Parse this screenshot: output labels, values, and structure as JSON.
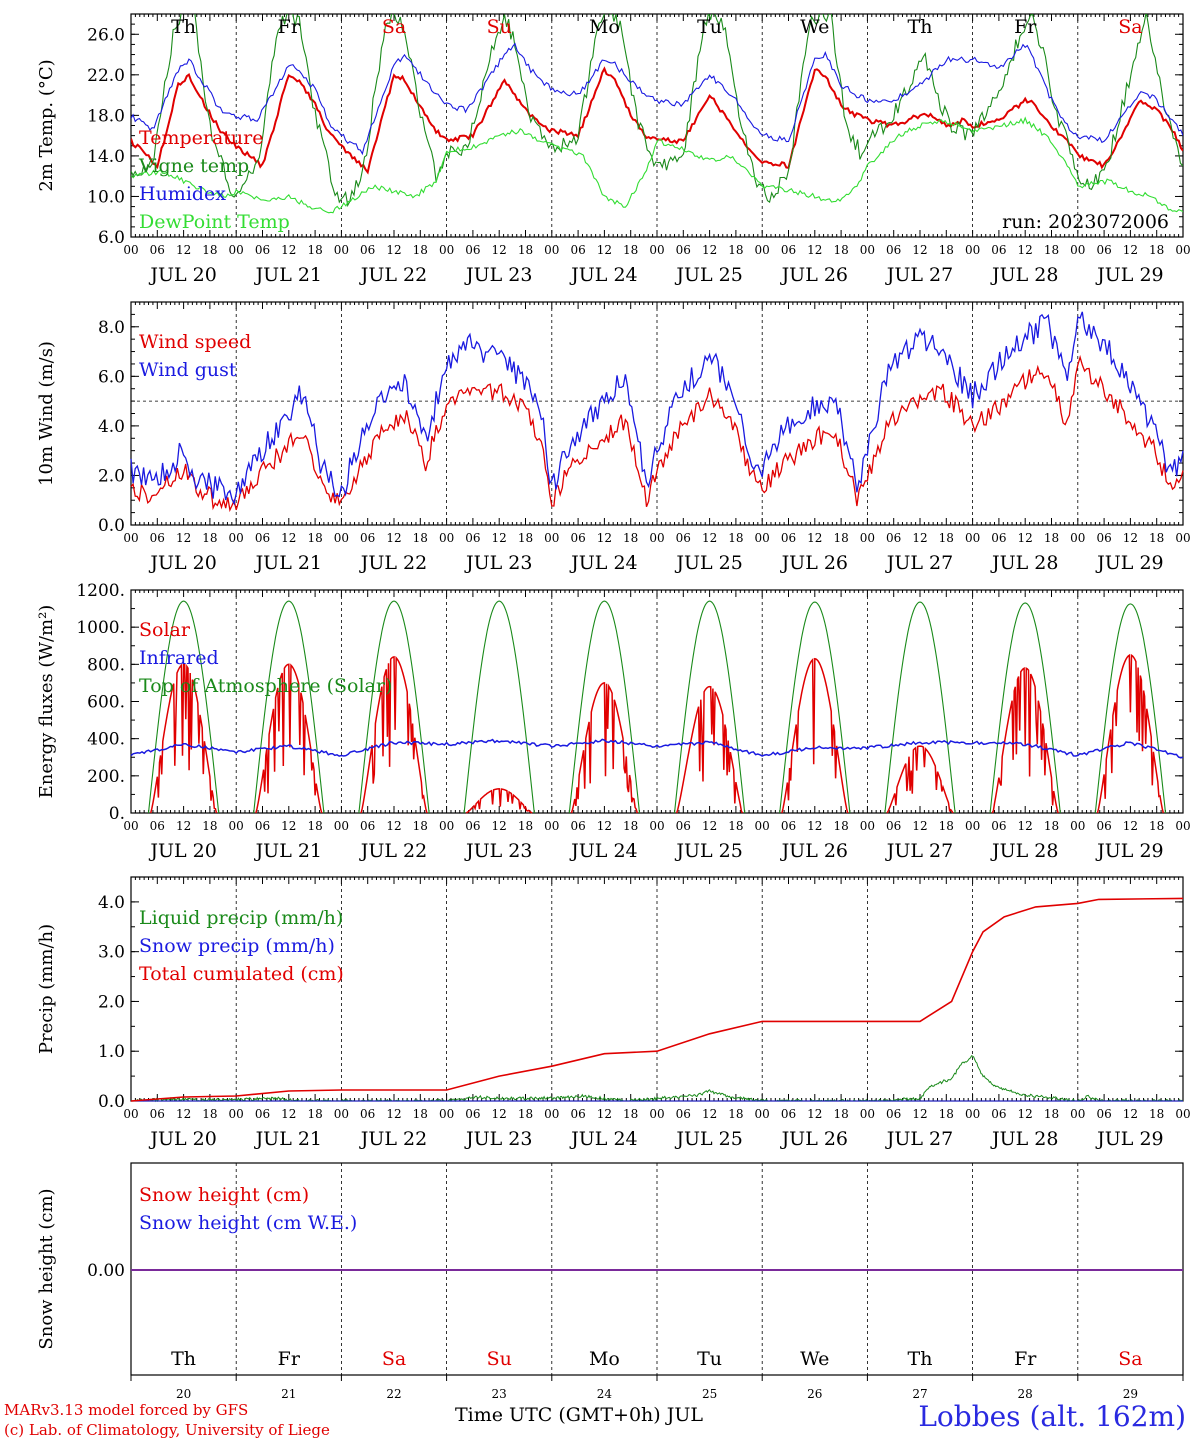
{
  "colors": {
    "red": "#e00000",
    "dark_green": "#1a8a1a",
    "blue": "#1a1ae0",
    "light_green": "#33dd33",
    "purple": "#7a2a9a"
  },
  "time_axis": {
    "hour_ticks": [
      "00",
      "06",
      "12",
      "18"
    ],
    "dates": [
      "JUL 20",
      "JUL 21",
      "JUL 22",
      "JUL 23",
      "JUL 24",
      "JUL 25",
      "JUL 26",
      "JUL 27",
      "JUL 28",
      "JUL 29"
    ],
    "weekdays": [
      {
        "label": "Th",
        "weekend": false
      },
      {
        "label": "Fr",
        "weekend": false
      },
      {
        "label": "Sa",
        "weekend": true
      },
      {
        "label": "Su",
        "weekend": true
      },
      {
        "label": "Mo",
        "weekend": false
      },
      {
        "label": "Tu",
        "weekend": false
      },
      {
        "label": "We",
        "weekend": false
      },
      {
        "label": "Th",
        "weekend": false
      },
      {
        "label": "Fr",
        "weekend": false
      },
      {
        "label": "Sa",
        "weekend": true
      }
    ],
    "day_numbers": [
      "20",
      "21",
      "22",
      "23",
      "24",
      "25",
      "26",
      "27",
      "28",
      "29"
    ],
    "xlabel": "Time UTC (GMT+0h) JUL",
    "x_range_days": [
      0,
      10
    ]
  },
  "chart_data": [
    {
      "type": "line",
      "ylabel": "2m Temp. (°C)",
      "ylim": [
        6,
        28
      ],
      "yticks": [
        "6.0",
        "10.0",
        "14.0",
        "18.0",
        "22.0",
        "26.0"
      ],
      "annotation": "run: 2023072006",
      "series": [
        {
          "name": "Temperature",
          "color": "#e00000",
          "x": [
            0,
            0.25,
            0.45,
            0.55,
            0.7,
            0.85,
            1.0,
            1.25,
            1.5,
            1.6,
            1.75,
            1.9,
            2.0,
            2.25,
            2.5,
            2.6,
            2.75,
            2.9,
            3.0,
            3.25,
            3.55,
            3.65,
            3.75,
            3.9,
            4.0,
            4.25,
            4.5,
            4.6,
            4.75,
            4.9,
            5.0,
            5.25,
            5.5,
            5.6,
            5.75,
            5.9,
            6.0,
            6.25,
            6.5,
            6.6,
            6.75,
            6.9,
            7.0,
            7.25,
            7.5,
            7.6,
            7.75,
            7.9,
            8.0,
            8.25,
            8.5,
            8.6,
            8.75,
            8.9,
            9.0,
            9.25,
            9.6,
            9.75,
            9.9,
            10.0
          ],
          "values": [
            15.5,
            13,
            21,
            22,
            19,
            16.5,
            15,
            13,
            22,
            21.5,
            19,
            16,
            15,
            12.5,
            22,
            21.5,
            19,
            16.5,
            15.5,
            16,
            21.5,
            20,
            18.5,
            17,
            16.5,
            16,
            22.5,
            21.5,
            18,
            16,
            15.5,
            15.5,
            20,
            18.5,
            16.5,
            14.5,
            13.5,
            13,
            22.5,
            22,
            19,
            18,
            17.5,
            17,
            18,
            18,
            17,
            17.5,
            17,
            17.5,
            19.5,
            19,
            17,
            15.5,
            14,
            13,
            19.5,
            18.5,
            16.5,
            14.5
          ]
        },
        {
          "name": "Vigne temp",
          "color": "#1a8a1a",
          "x": [
            0,
            0.2,
            0.4,
            0.5,
            0.6,
            0.75,
            0.9,
            1.0,
            1.2,
            1.4,
            1.5,
            1.6,
            1.75,
            1.9,
            2.0,
            2.2,
            2.4,
            2.5,
            2.6,
            2.75,
            2.9,
            3.0,
            3.2,
            3.45,
            3.55,
            3.65,
            3.8,
            3.95,
            4.05,
            4.25,
            4.45,
            4.55,
            4.65,
            4.8,
            4.95,
            5.05,
            5.25,
            5.45,
            5.55,
            5.65,
            5.8,
            5.95,
            6.05,
            6.25,
            6.45,
            6.55,
            6.65,
            6.8,
            6.95,
            7.05,
            7.25,
            7.45,
            7.55,
            7.65,
            7.8,
            7.95,
            8.05,
            8.25,
            8.45,
            8.55,
            8.65,
            8.8,
            8.95,
            9.05,
            9.25,
            9.55,
            9.65,
            9.8,
            9.95,
            10.0
          ],
          "values": [
            12,
            13,
            26,
            28,
            28,
            17,
            12,
            10,
            13,
            27,
            28,
            27,
            18,
            12,
            9,
            12,
            26,
            28,
            27,
            18,
            12,
            14,
            15,
            25,
            28,
            25,
            18,
            15,
            15,
            16,
            27,
            28,
            27,
            18,
            14,
            13,
            14,
            27,
            28,
            27,
            17,
            11,
            10,
            12,
            27,
            28,
            28,
            17,
            14,
            16,
            18,
            22,
            24,
            20,
            17,
            16,
            17,
            20,
            26,
            28,
            25,
            18,
            14,
            11,
            12,
            24,
            28,
            20,
            15,
            13
          ]
        },
        {
          "name": "Humidex",
          "color": "#1a1ae0",
          "x": [
            0,
            0.2,
            0.45,
            0.55,
            0.7,
            0.85,
            1.0,
            1.2,
            1.5,
            1.6,
            1.75,
            1.9,
            2.0,
            2.2,
            2.5,
            2.6,
            2.75,
            2.9,
            3.0,
            3.2,
            3.55,
            3.65,
            3.8,
            3.95,
            4.05,
            4.25,
            4.5,
            4.6,
            4.75,
            4.9,
            5.0,
            5.25,
            5.5,
            5.6,
            5.75,
            5.9,
            6.0,
            6.25,
            6.5,
            6.6,
            6.75,
            6.9,
            7.0,
            7.25,
            7.5,
            7.75,
            8.0,
            8.25,
            8.5,
            8.6,
            8.75,
            8.9,
            9.0,
            9.25,
            9.6,
            9.75,
            9.9,
            10.0
          ],
          "values": [
            18,
            16.5,
            22.5,
            23.5,
            21,
            18.5,
            18,
            17.5,
            23,
            22.5,
            20.5,
            17,
            16,
            14.5,
            23,
            24,
            22,
            20,
            19,
            18.5,
            24,
            25,
            22.5,
            21,
            20.5,
            20,
            23.5,
            23,
            21.5,
            20,
            19.5,
            19,
            22,
            21,
            19.5,
            17,
            16,
            15.5,
            23.5,
            24,
            21,
            20,
            19.5,
            19.5,
            21,
            23.5,
            23.5,
            22.5,
            25,
            23,
            19.5,
            17,
            16,
            15.5,
            20.5,
            19.5,
            17.5,
            16
          ]
        },
        {
          "name": "DewPoint Temp",
          "color": "#33dd33",
          "x": [
            0,
            0.3,
            0.5,
            0.7,
            0.9,
            1.0,
            1.3,
            1.5,
            1.7,
            1.9,
            2.0,
            2.3,
            2.5,
            2.7,
            2.9,
            3.0,
            3.3,
            3.5,
            3.7,
            3.9,
            4.0,
            4.3,
            4.5,
            4.7,
            4.9,
            5.0,
            5.3,
            5.5,
            5.7,
            5.9,
            6.0,
            6.3,
            6.5,
            6.7,
            6.9,
            7.0,
            7.3,
            7.5,
            7.7,
            7.9,
            8.0,
            8.3,
            8.5,
            8.7,
            8.9,
            9.0,
            9.3,
            9.5,
            9.7,
            9.9,
            10.0
          ],
          "values": [
            12,
            12.5,
            11.5,
            10.5,
            10,
            10.5,
            9.5,
            10,
            9,
            8.5,
            9,
            11,
            10.5,
            10,
            11.5,
            14.5,
            15,
            16,
            16.5,
            15.5,
            15,
            14,
            10,
            9,
            12.5,
            15.5,
            14.5,
            13.5,
            14,
            12,
            11,
            10.5,
            10,
            9.5,
            11,
            13,
            16,
            17,
            17.5,
            17,
            16.5,
            17,
            17.5,
            16,
            13,
            11,
            11.5,
            10.5,
            10,
            8.5,
            8.5
          ]
        }
      ]
    },
    {
      "type": "line",
      "ylabel": "10m Wind (m/s)",
      "ylim": [
        0,
        9
      ],
      "yticks": [
        "0.0",
        "2.0",
        "4.0",
        "6.0",
        "8.0"
      ],
      "reference_line": 5,
      "series": [
        {
          "name": "Wind speed",
          "color": "#e00000",
          "x": [
            0,
            0.2,
            0.4,
            0.5,
            0.6,
            0.8,
            1.0,
            1.2,
            1.4,
            1.6,
            1.7,
            1.8,
            2.0,
            2.2,
            2.4,
            2.6,
            2.8,
            3.0,
            3.2,
            3.5,
            3.7,
            3.9,
            4.0,
            4.2,
            4.5,
            4.7,
            4.9,
            5.0,
            5.2,
            5.5,
            5.7,
            5.9,
            6.0,
            6.2,
            6.5,
            6.7,
            6.9,
            7.0,
            7.2,
            7.5,
            7.7,
            7.9,
            8.0,
            8.3,
            8.5,
            8.7,
            8.9,
            9.0,
            9.3,
            9.5,
            9.7,
            9.9,
            10.0
          ],
          "values": [
            1.5,
            1.2,
            1.8,
            2.3,
            1.6,
            1.0,
            0.8,
            2.0,
            2.8,
            3.6,
            3.2,
            1.8,
            0.8,
            2.5,
            3.8,
            4.5,
            2.5,
            4.8,
            5.2,
            5.5,
            4.8,
            3.5,
            1.0,
            2.5,
            3.5,
            4.2,
            1.0,
            2.2,
            3.8,
            5.3,
            4.2,
            2.0,
            1.5,
            2.5,
            3.5,
            3.8,
            1.0,
            2.0,
            4.2,
            5.2,
            5.5,
            4.5,
            4.0,
            5.0,
            5.8,
            6.2,
            4.0,
            6.5,
            5.2,
            4.2,
            3.2,
            1.5,
            2.2
          ]
        },
        {
          "name": "Wind gust",
          "color": "#1a1ae0",
          "x": [
            0,
            0.2,
            0.4,
            0.5,
            0.6,
            0.8,
            1.0,
            1.2,
            1.4,
            1.6,
            1.7,
            1.8,
            2.0,
            2.2,
            2.4,
            2.6,
            2.8,
            3.0,
            3.2,
            3.5,
            3.7,
            3.9,
            4.0,
            4.2,
            4.5,
            4.7,
            4.9,
            5.0,
            5.2,
            5.5,
            5.7,
            5.9,
            6.0,
            6.2,
            6.5,
            6.7,
            6.9,
            7.0,
            7.2,
            7.5,
            7.7,
            7.9,
            8.0,
            8.3,
            8.5,
            8.7,
            8.9,
            9.0,
            9.3,
            9.5,
            9.7,
            9.9,
            10.0
          ],
          "values": [
            2.2,
            1.8,
            2.5,
            3.2,
            2.0,
            1.5,
            1.2,
            2.8,
            3.8,
            5.2,
            4.5,
            2.5,
            1.2,
            3.8,
            5.2,
            5.8,
            3.5,
            6.5,
            7.3,
            6.8,
            6.0,
            4.5,
            1.5,
            3.5,
            5.0,
            6.2,
            1.5,
            3.0,
            5.2,
            6.8,
            5.5,
            2.5,
            2.2,
            3.8,
            4.8,
            5.2,
            1.5,
            3.0,
            6.2,
            7.5,
            7.0,
            5.8,
            5.2,
            6.8,
            7.5,
            8.2,
            5.8,
            8.5,
            7.0,
            5.5,
            4.0,
            2.0,
            3.0
          ]
        }
      ]
    },
    {
      "type": "line",
      "ylabel": "Energy fluxes (W/m²)",
      "ylim": [
        0,
        1200
      ],
      "yticks": [
        "0.",
        "200.",
        "400.",
        "600.",
        "800.",
        "1000.",
        "1200."
      ],
      "series": [
        {
          "name": "Solar",
          "color": "#e00000",
          "daily_peak": [
            800,
            800,
            840,
            130,
            700,
            680,
            830,
            360,
            780,
            850
          ]
        },
        {
          "name": "Infrared",
          "color": "#1a1ae0",
          "x": [
            0,
            0.5,
            1.0,
            1.5,
            2.0,
            2.5,
            3.0,
            3.5,
            4.0,
            4.5,
            5.0,
            5.5,
            6.0,
            6.5,
            7.0,
            7.5,
            8.0,
            8.5,
            9.0,
            9.5,
            10.0
          ],
          "values": [
            310,
            370,
            330,
            360,
            310,
            380,
            370,
            390,
            360,
            390,
            360,
            380,
            310,
            350,
            350,
            380,
            380,
            370,
            310,
            380,
            300
          ]
        },
        {
          "name": "Top of Atmosphere (Solar)",
          "color": "#1a8a1a",
          "daily_peak": [
            1140,
            1140,
            1140,
            1140,
            1140,
            1140,
            1135,
            1135,
            1130,
            1125
          ]
        }
      ]
    },
    {
      "type": "line",
      "ylabel": "Precip (mm/h)",
      "ylim": [
        0,
        4.5
      ],
      "yticks": [
        "0.0",
        "1.0",
        "2.0",
        "3.0",
        "4.0"
      ],
      "series": [
        {
          "name": "Liquid precip (mm/h)",
          "color": "#1a8a1a",
          "x": [
            0,
            0.4,
            0.6,
            1.0,
            1.4,
            1.6,
            2.0,
            3.0,
            3.3,
            3.5,
            4.0,
            4.3,
            4.7,
            5.0,
            5.4,
            5.5,
            5.7,
            6.0,
            7.0,
            7.5,
            7.6,
            7.8,
            7.9,
            8.0,
            8.1,
            8.2,
            8.5,
            8.8,
            9.0,
            9.1,
            9.2,
            10.0
          ],
          "values": [
            0,
            0.04,
            0.02,
            0.03,
            0.05,
            0,
            0,
            0,
            0.08,
            0.05,
            0.06,
            0.1,
            0,
            0.05,
            0.12,
            0.2,
            0.08,
            0,
            0,
            0.05,
            0.3,
            0.45,
            0.75,
            0.9,
            0.5,
            0.3,
            0.12,
            0.05,
            0,
            0.1,
            0,
            0
          ]
        },
        {
          "name": "Snow precip (mm/h)",
          "color": "#1a1ae0",
          "x": [
            0,
            10
          ],
          "values": [
            0,
            0
          ]
        },
        {
          "name": "Total cumulated (cm)",
          "color": "#e00000",
          "x": [
            0,
            0.5,
            1.0,
            1.5,
            2.0,
            3.0,
            3.5,
            4.0,
            4.5,
            5.0,
            5.5,
            6.0,
            7.0,
            7.5,
            7.8,
            8.0,
            8.1,
            8.3,
            8.6,
            9.0,
            9.2,
            10.0
          ],
          "values": [
            0,
            0.08,
            0.1,
            0.2,
            0.22,
            0.22,
            0.5,
            0.7,
            0.95,
            1.0,
            1.35,
            1.6,
            1.6,
            1.6,
            2.0,
            3.0,
            3.4,
            3.7,
            3.9,
            3.97,
            4.05,
            4.07
          ]
        }
      ]
    },
    {
      "type": "line",
      "ylabel": "Snow height (cm)",
      "yticks": [
        "0.00"
      ],
      "series": [
        {
          "name": "Snow height (cm)",
          "color": "#e00000",
          "x": [
            0,
            10
          ],
          "values": [
            0,
            0
          ]
        },
        {
          "name": "Snow height (cm W.E.)",
          "color": "#1a1ae0",
          "x": [
            0,
            10
          ],
          "values": [
            0,
            0
          ]
        }
      ]
    }
  ],
  "footer": {
    "model_credit": "MARv3.13 model forced by GFS",
    "lab_credit": "(c) Lab. of Climatology, University of Liege",
    "station": "Lobbes (alt. 162m)"
  }
}
